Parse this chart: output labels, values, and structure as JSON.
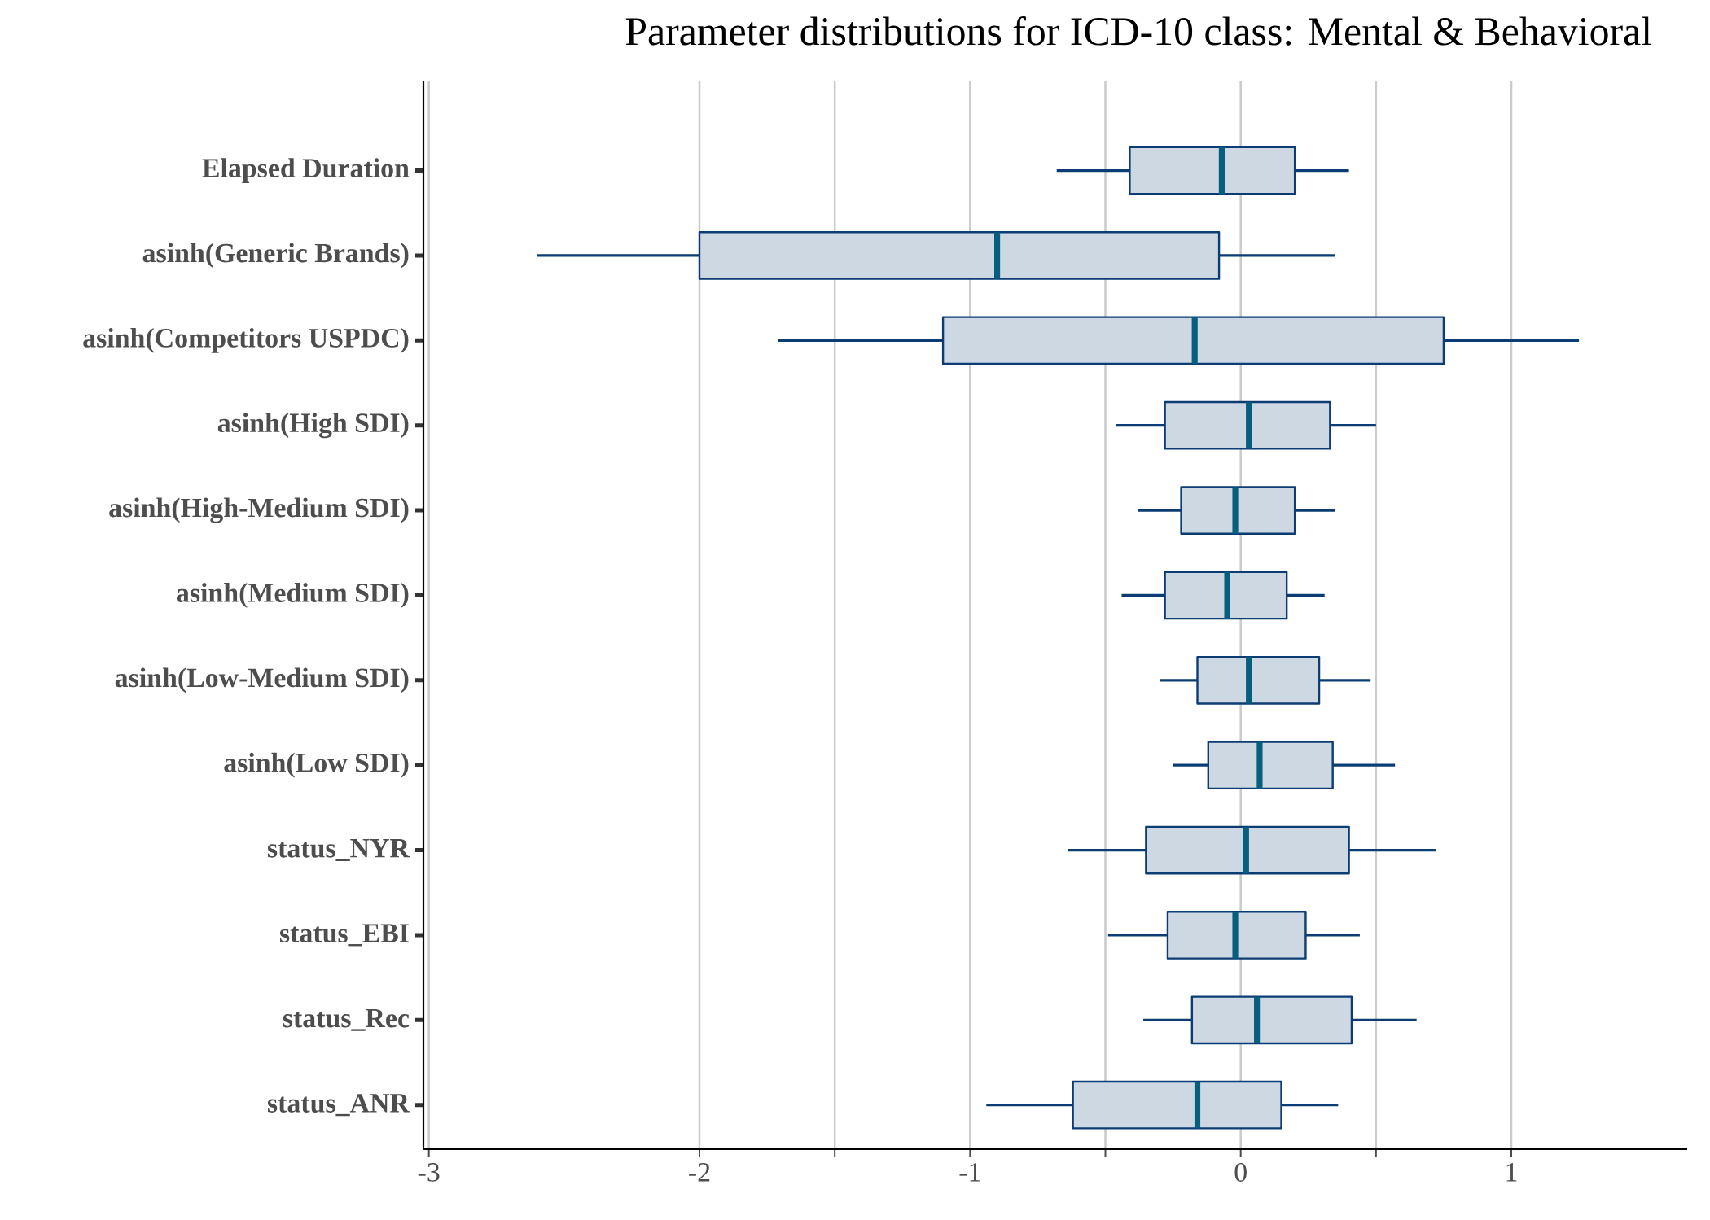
{
  "chart_data": {
    "type": "box",
    "orientation": "horizontal",
    "title": "Parameter distributions for ICD-10 class: Mental & Behavioral",
    "categories": [
      "Elapsed Duration",
      "asinh(Generic Brands)",
      "asinh(Competitors USPDC)",
      "asinh(High SDI)",
      "asinh(High-Medium SDI)",
      "asinh(Medium SDI)",
      "asinh(Low-Medium SDI)",
      "asinh(Low SDI)",
      "status_NYR",
      "status_EBI",
      "status_Rec",
      "status_ANR"
    ],
    "boxes": [
      {
        "low": -0.68,
        "q1": -0.41,
        "median": -0.07,
        "q3": 0.2,
        "high": 0.4
      },
      {
        "low": -2.6,
        "q1": -2.0,
        "median": -0.9,
        "q3": -0.08,
        "high": 0.35
      },
      {
        "low": -1.71,
        "q1": -1.1,
        "median": -0.17,
        "q3": 0.75,
        "high": 1.25
      },
      {
        "low": -0.46,
        "q1": -0.28,
        "median": 0.03,
        "q3": 0.33,
        "high": 0.5
      },
      {
        "low": -0.38,
        "q1": -0.22,
        "median": -0.02,
        "q3": 0.2,
        "high": 0.35
      },
      {
        "low": -0.44,
        "q1": -0.28,
        "median": -0.05,
        "q3": 0.17,
        "high": 0.31
      },
      {
        "low": -0.3,
        "q1": -0.16,
        "median": 0.03,
        "q3": 0.29,
        "high": 0.48
      },
      {
        "low": -0.25,
        "q1": -0.12,
        "median": 0.07,
        "q3": 0.34,
        "high": 0.57
      },
      {
        "low": -0.64,
        "q1": -0.35,
        "median": 0.02,
        "q3": 0.4,
        "high": 0.72
      },
      {
        "low": -0.49,
        "q1": -0.27,
        "median": -0.02,
        "q3": 0.24,
        "high": 0.44
      },
      {
        "low": -0.36,
        "q1": -0.18,
        "median": 0.06,
        "q3": 0.41,
        "high": 0.65
      },
      {
        "low": -0.94,
        "q1": -0.62,
        "median": -0.16,
        "q3": 0.15,
        "high": 0.36
      }
    ],
    "color": "#0b3c73",
    "xlim": [
      -3.02,
      1.65
    ],
    "xticks": [
      -3,
      -2,
      {
        "value": -1.5,
        "label": null
      },
      -1,
      {
        "value": -0.5,
        "label": null
      },
      0,
      {
        "value": 0.5,
        "label": null
      },
      1
    ],
    "grid": "x"
  }
}
